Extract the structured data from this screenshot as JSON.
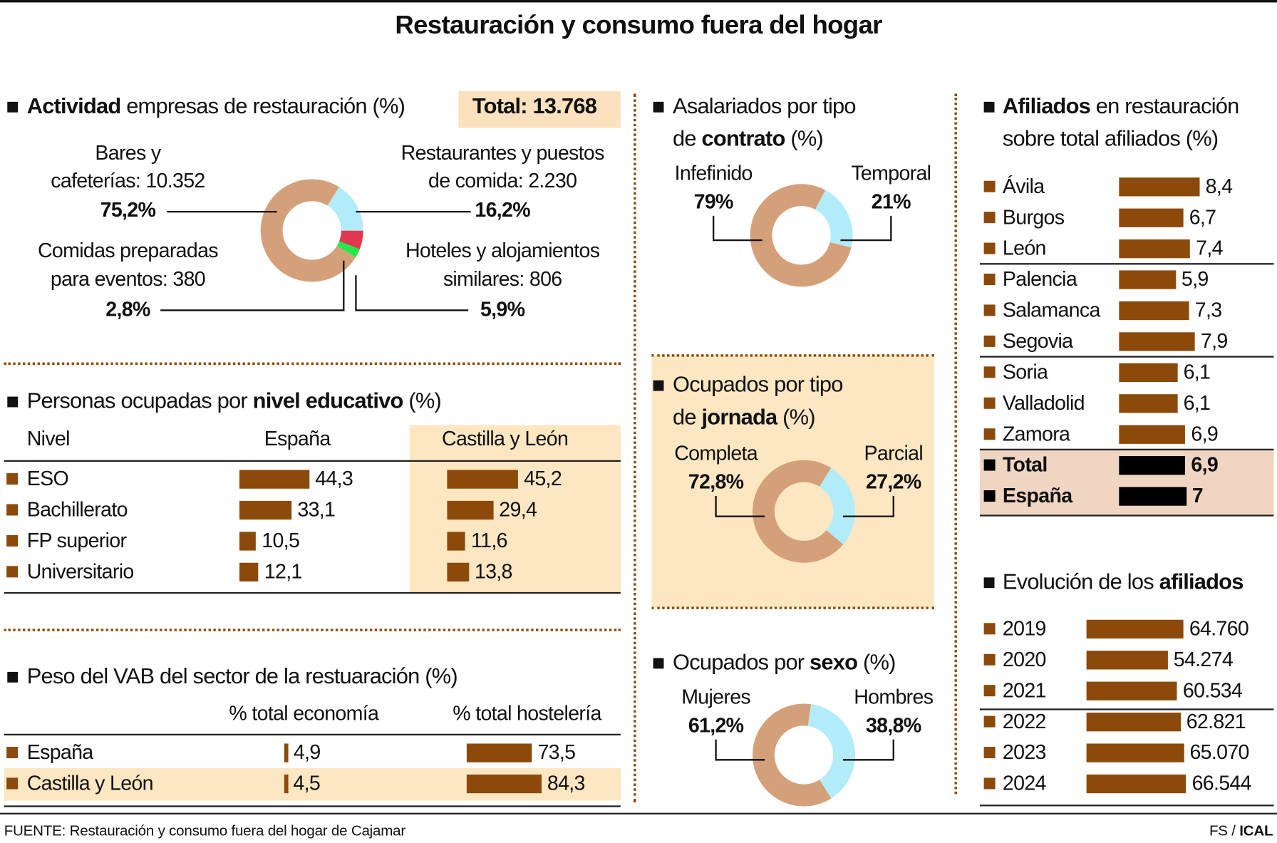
{
  "title": "Restauración y consumo fuera del hogar",
  "colors": {
    "brown": "#8b4a0b",
    "tan": "#d4a07a",
    "light_blue": "#b3ecf9",
    "red": "#e0394f",
    "green": "#22e84a",
    "highlight": "#fde6c2",
    "total_row": "#f0d5c3",
    "black": "#000000"
  },
  "actividad": {
    "title_bold": "Actividad",
    "title_rest": " empresas de restauración (%)",
    "total_label": "Total: 13.768",
    "segments": [
      {
        "line1": "Restaurantes y puestos",
        "line2": "de comida: 2.230",
        "pct": "16,2%",
        "value": 16.2,
        "color": "#b3ecf9"
      },
      {
        "line1": "Hoteles y alojamientos",
        "line2": "similares: 806",
        "pct": "5,9%",
        "value": 5.9,
        "color": "#e0394f"
      },
      {
        "line1": "Comidas preparadas",
        "line2": "para eventos: 380",
        "pct": "2,8%",
        "value": 2.8,
        "color": "#22e84a"
      },
      {
        "line1": "Bares y",
        "line2": "cafeterías: 10.352",
        "pct": "75,2%",
        "value": 75.2,
        "color": "#d4a07a"
      }
    ]
  },
  "educativo": {
    "title_pre": "Personas ocupadas por ",
    "title_bold": "nivel educativo",
    "title_rest": " (%)",
    "headers": [
      "Nivel",
      "España",
      "Castilla y León"
    ],
    "rows": [
      {
        "label": "ESO",
        "espana": 44.3,
        "espana_text": "44,3",
        "cyl": 45.2,
        "cyl_text": "45,2"
      },
      {
        "label": "Bachillerato",
        "espana": 33.1,
        "espana_text": "33,1",
        "cyl": 29.4,
        "cyl_text": "29,4"
      },
      {
        "label": "FP superior",
        "espana": 10.5,
        "espana_text": "10,5",
        "cyl": 11.6,
        "cyl_text": "11,6"
      },
      {
        "label": "Universitario",
        "espana": 12.1,
        "espana_text": "12,1",
        "cyl": 13.8,
        "cyl_text": "13,8"
      }
    ]
  },
  "vab": {
    "title": "Peso del VAB del sector de la restuaración (%)",
    "headers": [
      "% total economía",
      "% total hostelería"
    ],
    "rows": [
      {
        "label": "España",
        "economia": 4.9,
        "economia_text": "4,9",
        "hosteleria": 73.5,
        "hosteleria_text": "73,5"
      },
      {
        "label": "Castilla y León",
        "economia": 4.5,
        "economia_text": "4,5",
        "hosteleria": 84.3,
        "hosteleria_text": "84,3"
      }
    ]
  },
  "contrato": {
    "title_l1": "Asalariados por tipo",
    "title_pre": "de ",
    "title_bold": "contrato",
    "title_rest": " (%)",
    "segments": [
      {
        "label": "Temporal",
        "pct": "21%",
        "value": 21,
        "color": "#b3ecf9"
      },
      {
        "label": "Infefinido",
        "pct": "79%",
        "value": 79,
        "color": "#d4a07a"
      }
    ]
  },
  "jornada": {
    "title_l1": "Ocupados por tipo",
    "title_pre": "de ",
    "title_bold": "jornada",
    "title_rest": " (%)",
    "segments": [
      {
        "label": "Parcial",
        "pct": "27,2%",
        "value": 27.2,
        "color": "#b3ecf9"
      },
      {
        "label": "Completa",
        "pct": "72,8%",
        "value": 72.8,
        "color": "#d4a07a"
      }
    ]
  },
  "sexo": {
    "title_pre": "Ocupados por ",
    "title_bold": "sexo",
    "title_rest": " (%)",
    "segments": [
      {
        "label": "Hombres",
        "pct": "38,8%",
        "value": 38.8,
        "color": "#b3ecf9"
      },
      {
        "label": "Mujeres",
        "pct": "61,2%",
        "value": 61.2,
        "color": "#d4a07a"
      }
    ]
  },
  "afiliados": {
    "title_bold": "Afiliados",
    "title_rest": " en restauración",
    "title_l2": "sobre total afiliados (%)",
    "rows": [
      {
        "label": "Ávila",
        "value": 8.4,
        "text": "8,4"
      },
      {
        "label": "Burgos",
        "value": 6.7,
        "text": "6,7"
      },
      {
        "label": "León",
        "value": 7.4,
        "text": "7,4"
      },
      {
        "label": "Palencia",
        "value": 5.9,
        "text": "5,9"
      },
      {
        "label": "Salamanca",
        "value": 7.3,
        "text": "7,3"
      },
      {
        "label": "Segovia",
        "value": 7.9,
        "text": "7,9"
      },
      {
        "label": "Soria",
        "value": 6.1,
        "text": "6,1"
      },
      {
        "label": "Valladolid",
        "value": 6.1,
        "text": "6,1"
      },
      {
        "label": "Zamora",
        "value": 6.9,
        "text": "6,9"
      },
      {
        "label": "Total",
        "value": 6.9,
        "text": "6,9",
        "total": true
      },
      {
        "label": "España",
        "value": 7,
        "text": "7",
        "total": true
      }
    ]
  },
  "evolucion": {
    "title_pre": "Evolución de los ",
    "title_bold": "afiliados",
    "rows": [
      {
        "label": "2019",
        "value": 64760,
        "text": "64.760"
      },
      {
        "label": "2020",
        "value": 54274,
        "text": "54.274"
      },
      {
        "label": "2021",
        "value": 60534,
        "text": "60.534"
      },
      {
        "label": "2022",
        "value": 62821,
        "text": "62.821"
      },
      {
        "label": "2023",
        "value": 65070,
        "text": "65.070"
      },
      {
        "label": "2024",
        "value": 66544,
        "text": "66.544"
      }
    ]
  },
  "footer": {
    "source": "FUENTE: Restauración y consumo fuera del hogar de Cajamar",
    "credit_pre": "FS / ",
    "credit_bold": "ICAL"
  },
  "chart_data": [
    {
      "type": "pie",
      "title": "Actividad empresas de restauración (%)",
      "categories": [
        "Bares y cafeterías",
        "Restaurantes y puestos de comida",
        "Hoteles y alojamientos similares",
        "Comidas preparadas para eventos"
      ],
      "values": [
        75.2,
        16.2,
        5.9,
        2.8
      ],
      "counts": [
        10352,
        2230,
        806,
        380
      ]
    },
    {
      "type": "bar",
      "title": "Personas ocupadas por nivel educativo (%)",
      "categories": [
        "ESO",
        "Bachillerato",
        "FP superior",
        "Universitario"
      ],
      "series": [
        {
          "name": "España",
          "values": [
            44.3,
            33.1,
            10.5,
            12.1
          ]
        },
        {
          "name": "Castilla y León",
          "values": [
            45.2,
            29.4,
            11.6,
            13.8
          ]
        }
      ]
    },
    {
      "type": "bar",
      "title": "Peso del VAB del sector de la restuaración (%)",
      "categories": [
        "España",
        "Castilla y León"
      ],
      "series": [
        {
          "name": "% total economía",
          "values": [
            4.9,
            4.5
          ]
        },
        {
          "name": "% total hostelería",
          "values": [
            73.5,
            84.3
          ]
        }
      ]
    },
    {
      "type": "pie",
      "title": "Asalariados por tipo de contrato (%)",
      "categories": [
        "Infefinido",
        "Temporal"
      ],
      "values": [
        79,
        21
      ]
    },
    {
      "type": "pie",
      "title": "Ocupados por tipo de jornada (%)",
      "categories": [
        "Completa",
        "Parcial"
      ],
      "values": [
        72.8,
        27.2
      ]
    },
    {
      "type": "pie",
      "title": "Ocupados por sexo (%)",
      "categories": [
        "Mujeres",
        "Hombres"
      ],
      "values": [
        61.2,
        38.8
      ]
    },
    {
      "type": "bar",
      "title": "Afiliados en restauración sobre total afiliados (%)",
      "categories": [
        "Ávila",
        "Burgos",
        "León",
        "Palencia",
        "Salamanca",
        "Segovia",
        "Soria",
        "Valladolid",
        "Zamora",
        "Total",
        "España"
      ],
      "values": [
        8.4,
        6.7,
        7.4,
        5.9,
        7.3,
        7.9,
        6.1,
        6.1,
        6.9,
        6.9,
        7
      ]
    },
    {
      "type": "bar",
      "title": "Evolución de los afiliados",
      "categories": [
        "2019",
        "2020",
        "2021",
        "2022",
        "2023",
        "2024"
      ],
      "values": [
        64760,
        54274,
        60534,
        62821,
        65070,
        66544
      ]
    }
  ]
}
